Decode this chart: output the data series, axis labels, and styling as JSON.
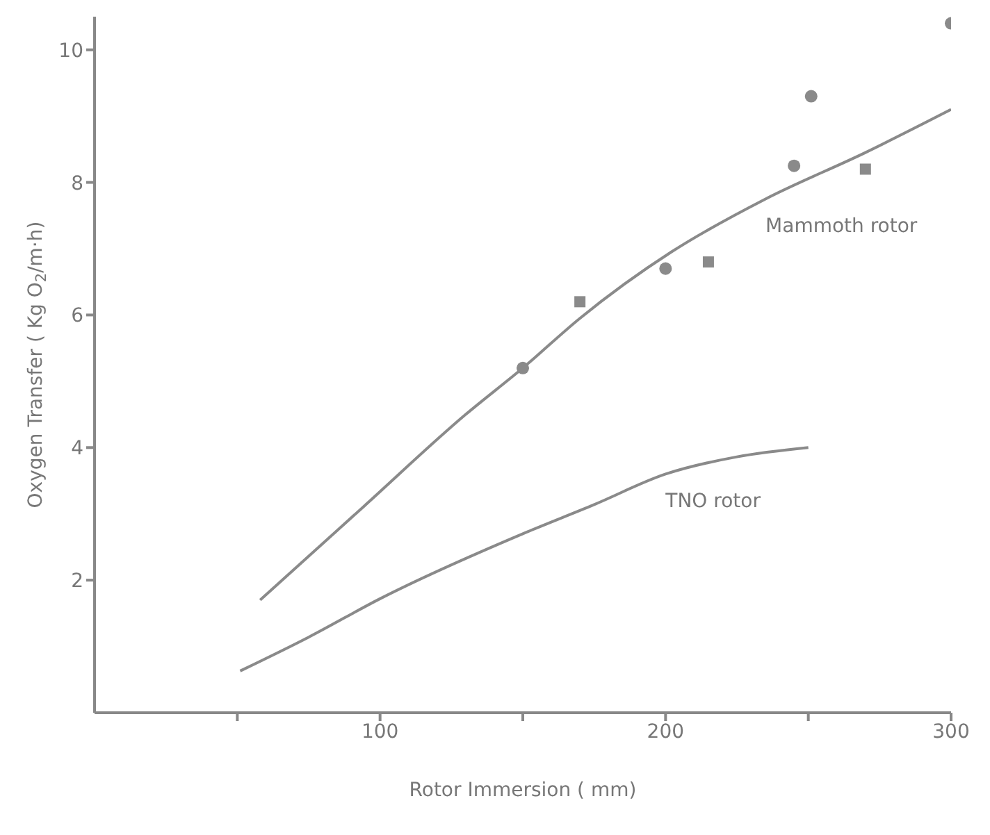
{
  "chart_data": {
    "type": "line",
    "xlabel": "Rotor Immersion ( mm)",
    "ylabel": "Oxygen Transfer  ( Kg O$_{2}$/m·h)",
    "xlim": [
      0,
      300
    ],
    "xticks": [
      {
        "value": 50,
        "label": null
      },
      100,
      {
        "value": 150,
        "label": null
      },
      200,
      {
        "value": 250,
        "label": null
      },
      300
    ],
    "ylim": [
      0,
      10.5
    ],
    "yticks": [
      2,
      4,
      6,
      8,
      10
    ],
    "grid": false,
    "line_style": "solid",
    "series": [
      {
        "name": "Mammoth rotor",
        "marker": "none",
        "color": "#8a8a8a",
        "x": [
          58,
          94,
          130,
          150,
          170,
          202,
          235,
          270,
          300
        ],
        "values": [
          1.7,
          3.1,
          4.5,
          5.2,
          5.95,
          6.95,
          7.75,
          8.45,
          9.1
        ]
      },
      {
        "name": "TNO rotor",
        "marker": "none",
        "color": "#8a8a8a",
        "x": [
          51,
          75,
          100,
          150,
          175,
          200,
          225,
          250
        ],
        "values": [
          0.63,
          1.14,
          1.72,
          2.7,
          3.14,
          3.6,
          3.86,
          4.0
        ]
      },
      {
        "type": "scatter",
        "marker": "circle",
        "color": "#8a8a8a",
        "x": [
          150,
          200,
          245,
          251,
          300
        ],
        "values": [
          5.2,
          6.7,
          8.25,
          9.3,
          10.4
        ]
      },
      {
        "type": "scatter",
        "marker": "square",
        "color": "#8a8a8a",
        "x": [
          170,
          215,
          270
        ],
        "values": [
          6.2,
          6.8,
          8.2
        ]
      }
    ]
  }
}
